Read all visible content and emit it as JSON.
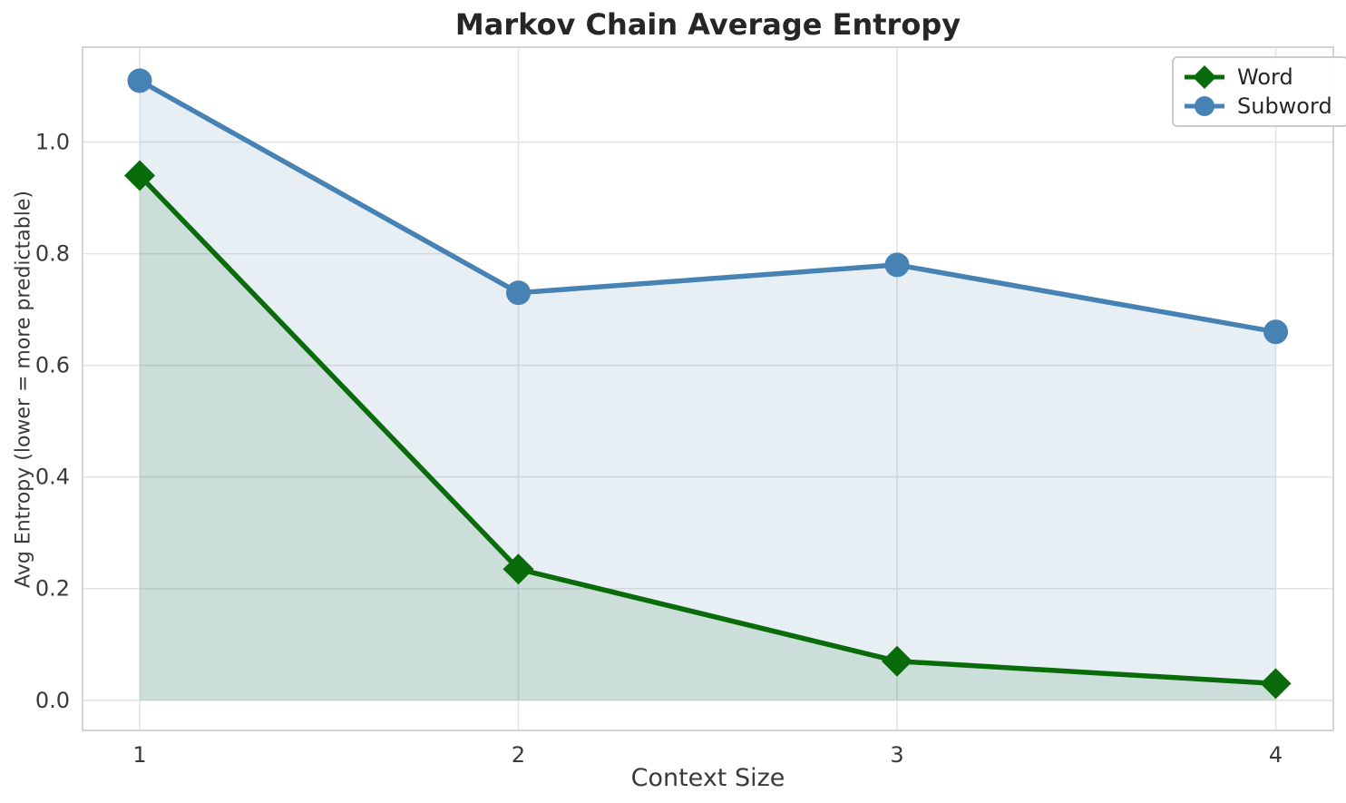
{
  "chart_data": {
    "type": "line",
    "title": "Markov Chain Average Entropy",
    "xlabel": "Context Size",
    "ylabel": "Avg Entropy (lower = more predictable)",
    "x": [
      1,
      2,
      3,
      4
    ],
    "series": [
      {
        "name": "Word",
        "values": [
          0.94,
          0.235,
          0.07,
          0.03
        ],
        "color": "#0a6b0a",
        "marker": "diamond",
        "fill": true
      },
      {
        "name": "Subword",
        "values": [
          1.11,
          0.73,
          0.78,
          0.66
        ],
        "color": "#4682b4",
        "marker": "circle",
        "fill": true
      }
    ],
    "fill_alpha": 0.13,
    "fill_to": 0,
    "xticks": [
      1,
      2,
      3,
      4
    ],
    "xtick_labels": [
      "1",
      "2",
      "3",
      "4"
    ],
    "yticks": [
      0.0,
      0.2,
      0.4,
      0.6,
      0.8,
      1.0
    ],
    "ytick_labels": [
      "0.0",
      "0.2",
      "0.4",
      "0.6",
      "0.8",
      "1.0"
    ],
    "xlim": [
      0.849,
      4.152
    ],
    "ylim": [
      -0.054,
      1.17
    ],
    "grid": true,
    "legend_position": "top-right"
  },
  "style": {
    "grid_color": "#e4e4e4",
    "spine_color": "#d4d4d4",
    "tick_label_color": "#3a3a3a",
    "title_color": "#262626",
    "background": "#ffffff"
  }
}
